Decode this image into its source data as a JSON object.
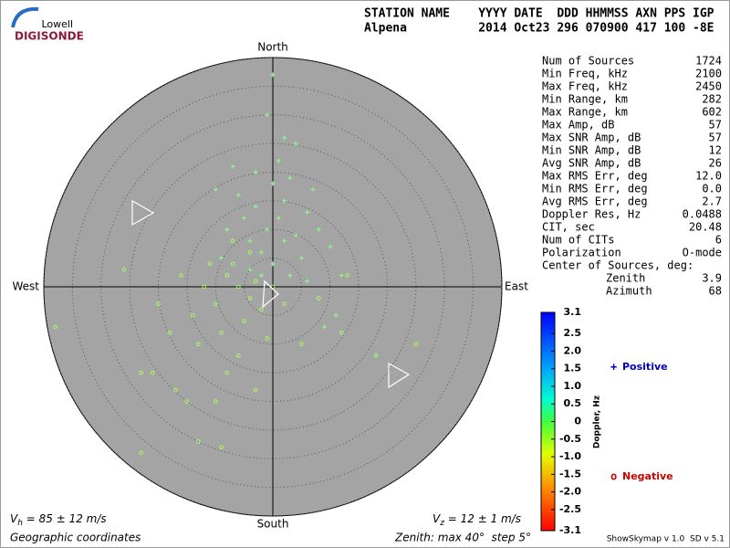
{
  "logo": {
    "line1": "Lowell",
    "line2": "DIGISONDE"
  },
  "header": {
    "labels": "STATION NAME    YYYY DATE  DDD HHMMSS AXN PPS IGP",
    "values": "Alpena          2014 Oct23 296 070900 417 100 -8E"
  },
  "stats": [
    [
      "Num of Sources",
      "1724"
    ],
    [
      "Min Freq, kHz",
      "2100"
    ],
    [
      "Max Freq, kHz",
      "2450"
    ],
    [
      "Min Range, km",
      "282"
    ],
    [
      "Max Range, km",
      "602"
    ],
    [
      "Max Amp, dB",
      "57"
    ],
    [
      "Max SNR Amp, dB",
      "57"
    ],
    [
      "Min SNR Amp, dB",
      "12"
    ],
    [
      "Avg SNR Amp, dB",
      "26"
    ],
    [
      "Max RMS Err, deg",
      "12.0"
    ],
    [
      "Min RMS Err, deg",
      "0.0"
    ],
    [
      "Avg RMS Err, deg",
      "2.7"
    ],
    [
      "Doppler Res, Hz",
      "0.0488"
    ],
    [
      "CIT, sec",
      "20.48"
    ],
    [
      "Num of CITs",
      "6"
    ],
    [
      "Polarization",
      "O-mode"
    ]
  ],
  "center": {
    "title": "Center of Sources, deg:",
    "rows": [
      [
        "Zenith",
        "3.9"
      ],
      [
        "Azimuth",
        "68"
      ]
    ]
  },
  "footer": {
    "vh": [
      "V",
      "h",
      " = 85 ± 12 m/s"
    ],
    "vz": [
      "V",
      "z",
      " = 12 ± 1 m/s"
    ],
    "coords": "Geographic coordinates",
    "zenith": "Zenith: max 40°  step 5°",
    "version": "ShowSkymap v 1.0  SD v 5.1"
  },
  "chart_data": {
    "type": "skymap",
    "directions": {
      "north": "North",
      "south": "South",
      "east": "East",
      "west": "West"
    },
    "rlim": [
      0,
      40
    ],
    "rticks": [
      5,
      10,
      15,
      20,
      25,
      30,
      35,
      40
    ],
    "series": [
      {
        "name": "Positive",
        "marker": "+",
        "color": "#8cff8c",
        "legend_color": "#0000cc",
        "x": [
          -3,
          0,
          -1,
          2,
          -5,
          4,
          1,
          -2,
          6,
          -6,
          3,
          -4,
          0,
          5,
          8,
          -8,
          1,
          2,
          -1,
          0,
          -3,
          10,
          12,
          -9,
          3,
          -2,
          7,
          -7,
          4,
          9,
          11,
          -10,
          2,
          -4,
          6
        ],
        "y": [
          14,
          18,
          10,
          15,
          12,
          9,
          22,
          6,
          13,
          16,
          19,
          8,
          4,
          5,
          10,
          10,
          12,
          26,
          30,
          37,
          20,
          7,
          2,
          5,
          2,
          2,
          17,
          21,
          25,
          -7,
          -5,
          17,
          8,
          3,
          1
        ]
      },
      {
        "name": "Negative",
        "marker": "o",
        "color": "#a6ff5a",
        "legend_color": "#cc0000",
        "x": [
          -6,
          -8,
          -4,
          -10,
          -7,
          -3,
          -12,
          -5,
          -9,
          -2,
          -14,
          -6,
          -11,
          -4,
          -16,
          -1,
          -8,
          -13,
          2,
          -3,
          -18,
          -7,
          0,
          -20,
          -10,
          8,
          13,
          12,
          -23,
          -15,
          -38,
          -23,
          -9,
          -17,
          5,
          18,
          25,
          -26,
          -21,
          -13
        ],
        "y": [
          0,
          2,
          -2,
          -3,
          4,
          1,
          0,
          -6,
          -8,
          -4,
          -5,
          -12,
          4,
          6,
          2,
          -9,
          -15,
          -10,
          -3,
          -18,
          -8,
          8,
          0,
          -3,
          -20,
          -2,
          2,
          -8,
          -15,
          -20,
          -7,
          -29,
          -28,
          -18,
          -10,
          -12,
          -10,
          3,
          -15,
          -27
        ]
      }
    ],
    "colorbar": {
      "label": "Doppler, Hz",
      "lim": [
        -3.1,
        3.1
      ],
      "ticks": [
        3.1,
        2.5,
        {
          "value": 2,
          "label": "2.0"
        },
        1.5,
        {
          "value": 1,
          "label": "1.0"
        },
        0.5,
        0,
        -0.5,
        {
          "value": -1,
          "label": "-1.0"
        },
        -1.5,
        {
          "value": -2,
          "label": "-2.0"
        },
        -2.5,
        -3.1
      ]
    }
  }
}
